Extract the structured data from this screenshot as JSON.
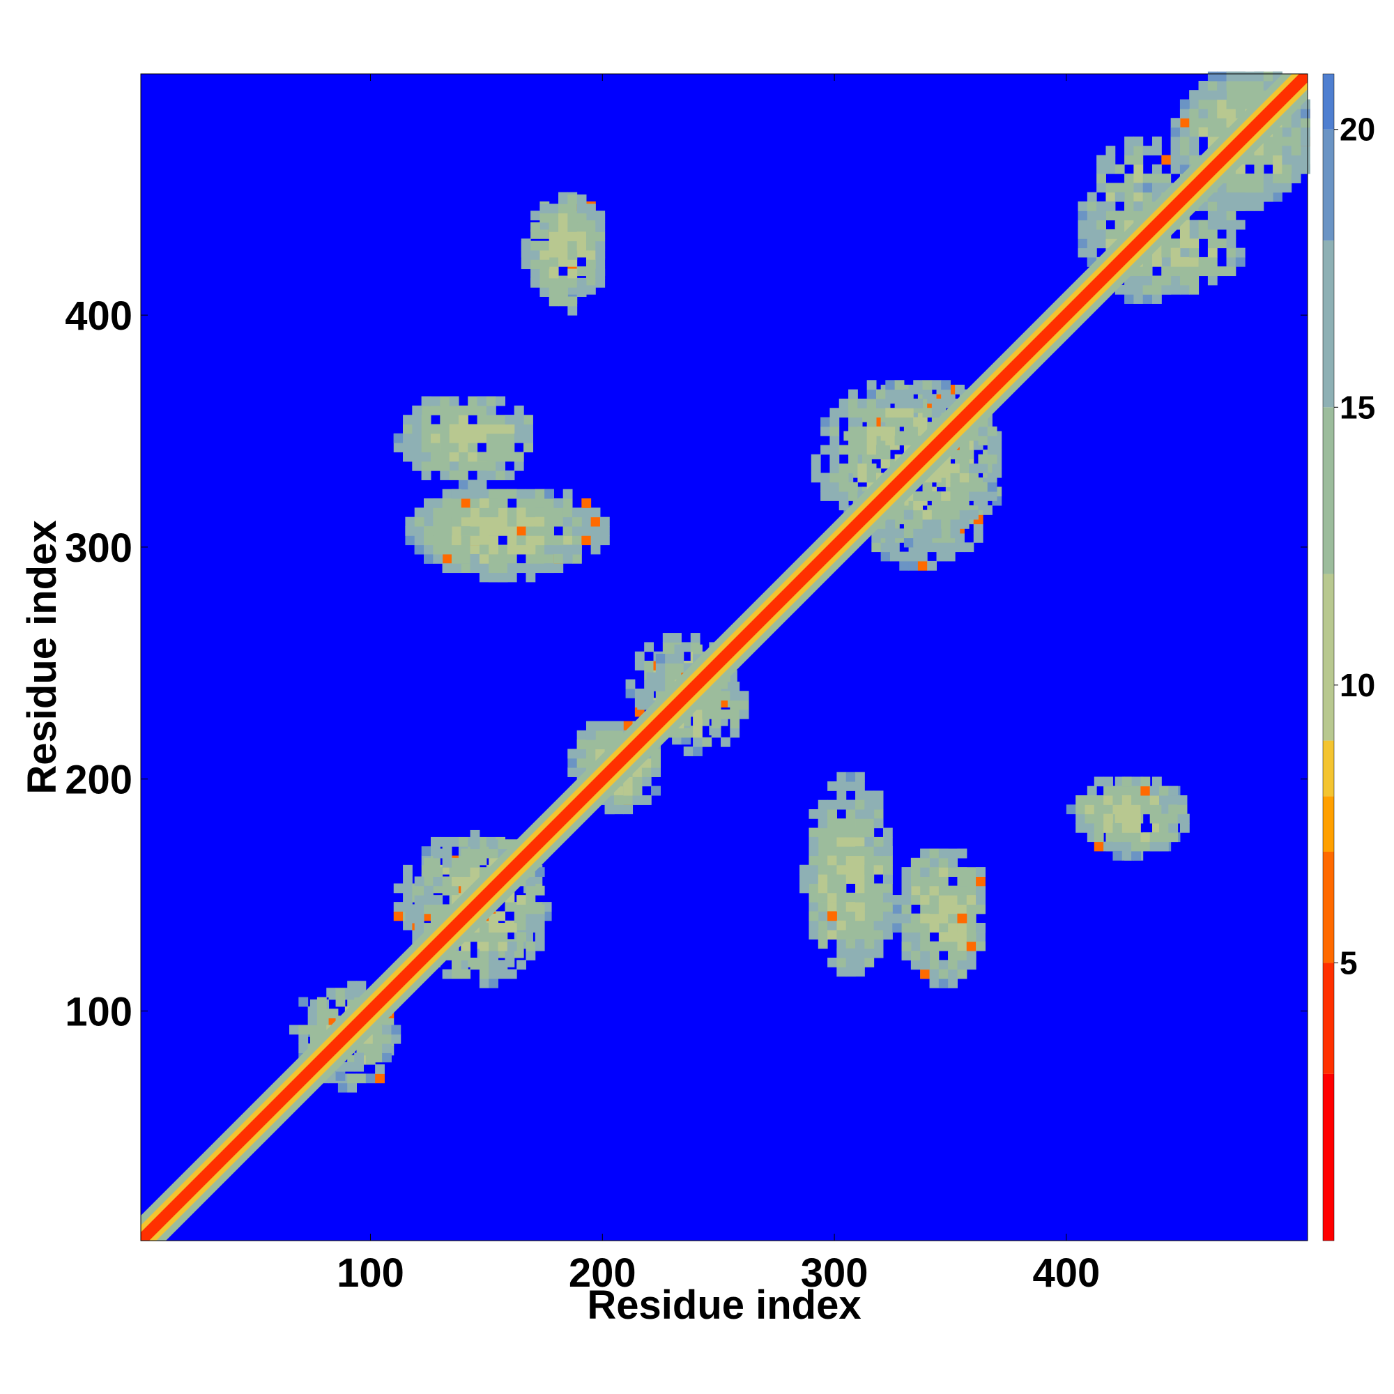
{
  "chart_data": {
    "type": "heatmap",
    "title": "",
    "xlabel": "Residue index",
    "ylabel": "Residue index",
    "xlim": [
      1,
      504
    ],
    "ylim": [
      1,
      504
    ],
    "x_ticks": [
      100,
      200,
      300,
      400
    ],
    "y_ticks": [
      100,
      200,
      300,
      400
    ],
    "x_tick_labels": [
      "100",
      "200",
      "300",
      "400"
    ],
    "y_tick_labels": [
      "100",
      "200",
      "300",
      "400"
    ],
    "colorbar": {
      "range": [
        0,
        21
      ],
      "ticks": [
        5,
        10,
        15,
        20
      ],
      "tick_labels": [
        "5",
        "10",
        "15",
        "20"
      ],
      "colors": [
        {
          "value": 0,
          "color": "#ff0000"
        },
        {
          "value": 3,
          "color": "#ff3000"
        },
        {
          "value": 5,
          "color": "#ff6a00"
        },
        {
          "value": 7,
          "color": "#ffa000"
        },
        {
          "value": 8,
          "color": "#f4c430"
        },
        {
          "value": 9,
          "color": "#b8c890"
        },
        {
          "value": 12,
          "color": "#9cbc9c"
        },
        {
          "value": 15,
          "color": "#8eb0b4"
        },
        {
          "value": 18,
          "color": "#6b94c4"
        },
        {
          "value": 20,
          "color": "#4f7fd0"
        },
        {
          "value": 21,
          "color": "#0000ff"
        }
      ]
    },
    "background_color": "#0000ff",
    "description_values": {
      "diagonal_band": {
        "value": 3,
        "halfwidth_residues": 6
      },
      "contact_regions": [
        {
          "x": [
            30,
            40
          ],
          "y": [
            30,
            42
          ],
          "value": 11
        },
        {
          "x": [
            70,
            110
          ],
          "y": [
            65,
            110
          ],
          "value": 12
        },
        {
          "x": [
            110,
            175
          ],
          "y": [
            115,
            175
          ],
          "value": 11
        },
        {
          "x": [
            185,
            225
          ],
          "y": [
            185,
            225
          ],
          "value": 11
        },
        {
          "x": [
            210,
            255
          ],
          "y": [
            215,
            260
          ],
          "value": 11
        },
        {
          "x": [
            115,
            200
          ],
          "y": [
            285,
            325
          ],
          "value": 11
        },
        {
          "x": [
            110,
            170
          ],
          "y": [
            325,
            365
          ],
          "value": 11
        },
        {
          "x": [
            165,
            200
          ],
          "y": [
            405,
            450
          ],
          "value": 11
        },
        {
          "x": [
            285,
            325
          ],
          "y": [
            115,
            190
          ],
          "value": 11
        },
        {
          "x": [
            325,
            365
          ],
          "y": [
            110,
            170
          ],
          "value": 11
        },
        {
          "x": [
            400,
            450
          ],
          "y": [
            165,
            200
          ],
          "value": 11
        },
        {
          "x": [
            405,
            455
          ],
          "y": [
            405,
            475
          ],
          "value": 11
        },
        {
          "x": [
            445,
            504
          ],
          "y": [
            445,
            504
          ],
          "value": 11
        },
        {
          "x": [
            300,
            370
          ],
          "y": [
            290,
            370
          ],
          "value": 11
        }
      ]
    }
  }
}
